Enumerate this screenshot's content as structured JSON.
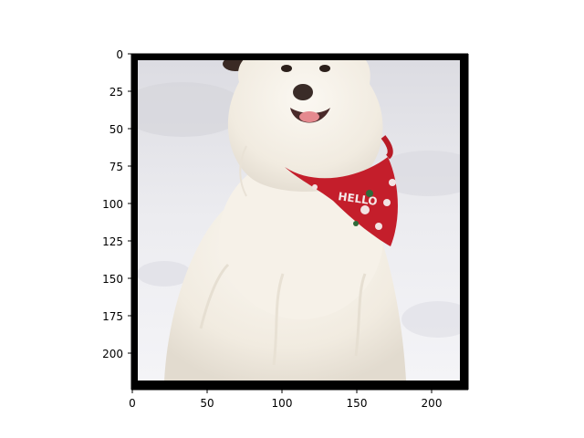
{
  "figure": {
    "type": "image-display",
    "subject": "white fluffy dog sitting in snow wearing a red paw-print bandana",
    "bandana_text": "HELLO",
    "colors": {
      "border": "#000000",
      "snow": "#eeeef2",
      "fur": "#f4efe6",
      "bandana": "#c41e2b",
      "paw": "#f2e3e3"
    }
  },
  "axes": {
    "x_ticks": [
      "0",
      "50",
      "100",
      "150",
      "200"
    ],
    "y_ticks": [
      "0",
      "25",
      "50",
      "75",
      "100",
      "125",
      "150",
      "175",
      "200"
    ],
    "xlim": [
      0,
      224
    ],
    "ylim": [
      224,
      0
    ]
  }
}
